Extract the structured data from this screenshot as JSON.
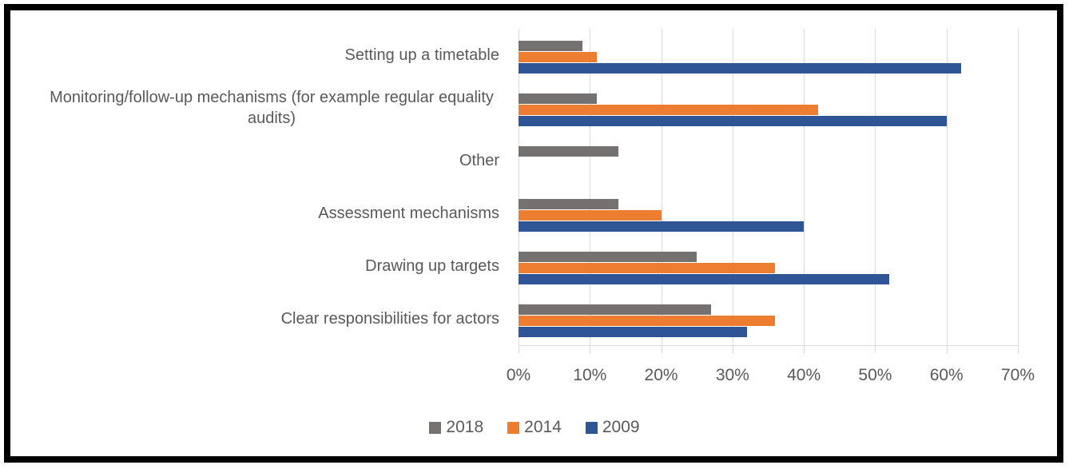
{
  "chart_data": {
    "type": "bar",
    "orientation": "horizontal",
    "title": "",
    "categories": [
      "Setting up a timetable",
      "Monitoring/follow-up mechanisms (for example regular equality audits)",
      "Other",
      "Assessment mechanisms",
      "Drawing up targets",
      "Clear responsibilities for actors"
    ],
    "series": [
      {
        "name": "2018",
        "color": "#767171",
        "values": [
          9,
          11,
          14,
          14,
          25,
          27
        ]
      },
      {
        "name": "2014",
        "color": "#ED7D31",
        "values": [
          11,
          42,
          0,
          20,
          36,
          36
        ]
      },
      {
        "name": "2009",
        "color": "#2F5597",
        "values": [
          62,
          60,
          0,
          40,
          52,
          32
        ]
      }
    ],
    "x_axis": {
      "min": 0,
      "max": 70,
      "tick_step": 10,
      "tick_labels": [
        "0%",
        "10%",
        "20%",
        "30%",
        "40%",
        "50%",
        "60%",
        "70%"
      ],
      "unit": "%"
    },
    "gridlines": true,
    "legend": {
      "position": "bottom-center",
      "entries": [
        "2018",
        "2014",
        "2009"
      ]
    },
    "notes": "Within each category group, bars are drawn top-to-bottom in series order 2018, 2014, 2009. The Other category has a bar only for 2018."
  },
  "styles": {
    "frame_border_color": "#000000",
    "background_color": "#ffffff",
    "text_color": "#595959",
    "gridline_color": "#d9d9d9"
  }
}
